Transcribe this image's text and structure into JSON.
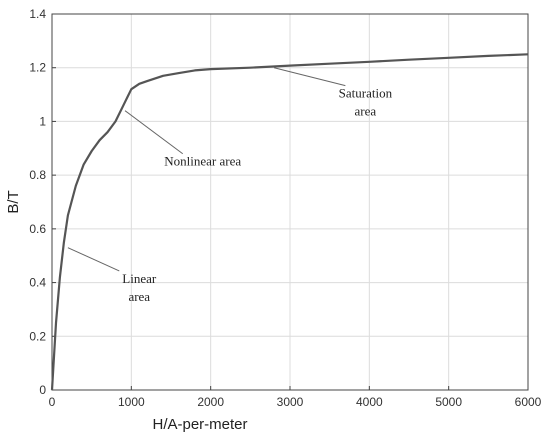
{
  "chart_data": {
    "type": "line",
    "title": "",
    "xlabel": "H/A-per-meter",
    "ylabel": "B/T",
    "xlim": [
      0,
      6000
    ],
    "ylim": [
      0,
      1.4
    ],
    "xticks": [
      0,
      1000,
      2000,
      3000,
      4000,
      5000,
      6000
    ],
    "yticks": [
      0,
      0.2,
      0.4,
      0.6,
      0.8,
      1,
      1.2,
      1.4
    ],
    "xtick_labels": [
      "0",
      "1000",
      "2000",
      "3000",
      "4000",
      "5000",
      "6000"
    ],
    "ytick_labels": [
      "0",
      "0.2",
      "0.4",
      "0.6",
      "0.8",
      "1",
      "1.2",
      "1.4"
    ],
    "grid": true,
    "line_color": "#555555",
    "series": [
      {
        "x": [
          0,
          50,
          100,
          150,
          200,
          300,
          400,
          500,
          600,
          700,
          800,
          900,
          1000,
          1100,
          1200,
          1400,
          1600,
          1800,
          2000,
          2500,
          3000,
          3500,
          4000,
          4500,
          5000,
          5500,
          6000
        ],
        "y": [
          0,
          0.25,
          0.42,
          0.55,
          0.65,
          0.76,
          0.84,
          0.89,
          0.93,
          0.96,
          1.0,
          1.06,
          1.12,
          1.14,
          1.15,
          1.17,
          1.18,
          1.19,
          1.195,
          1.2,
          1.208,
          1.215,
          1.222,
          1.23,
          1.237,
          1.244,
          1.25
        ]
      }
    ],
    "annotations": [
      {
        "lines": [
          "Linear",
          "area"
        ],
        "target": [
          200,
          0.53
        ],
        "text_at": [
          1100,
          0.38
        ]
      },
      {
        "lines": [
          "Nonlinear area"
        ],
        "target": [
          920,
          1.04
        ],
        "text_at": [
          1900,
          0.85
        ]
      },
      {
        "lines": [
          "Saturation",
          "area"
        ],
        "target": [
          2800,
          1.2
        ],
        "text_at": [
          3950,
          1.07
        ]
      }
    ]
  }
}
